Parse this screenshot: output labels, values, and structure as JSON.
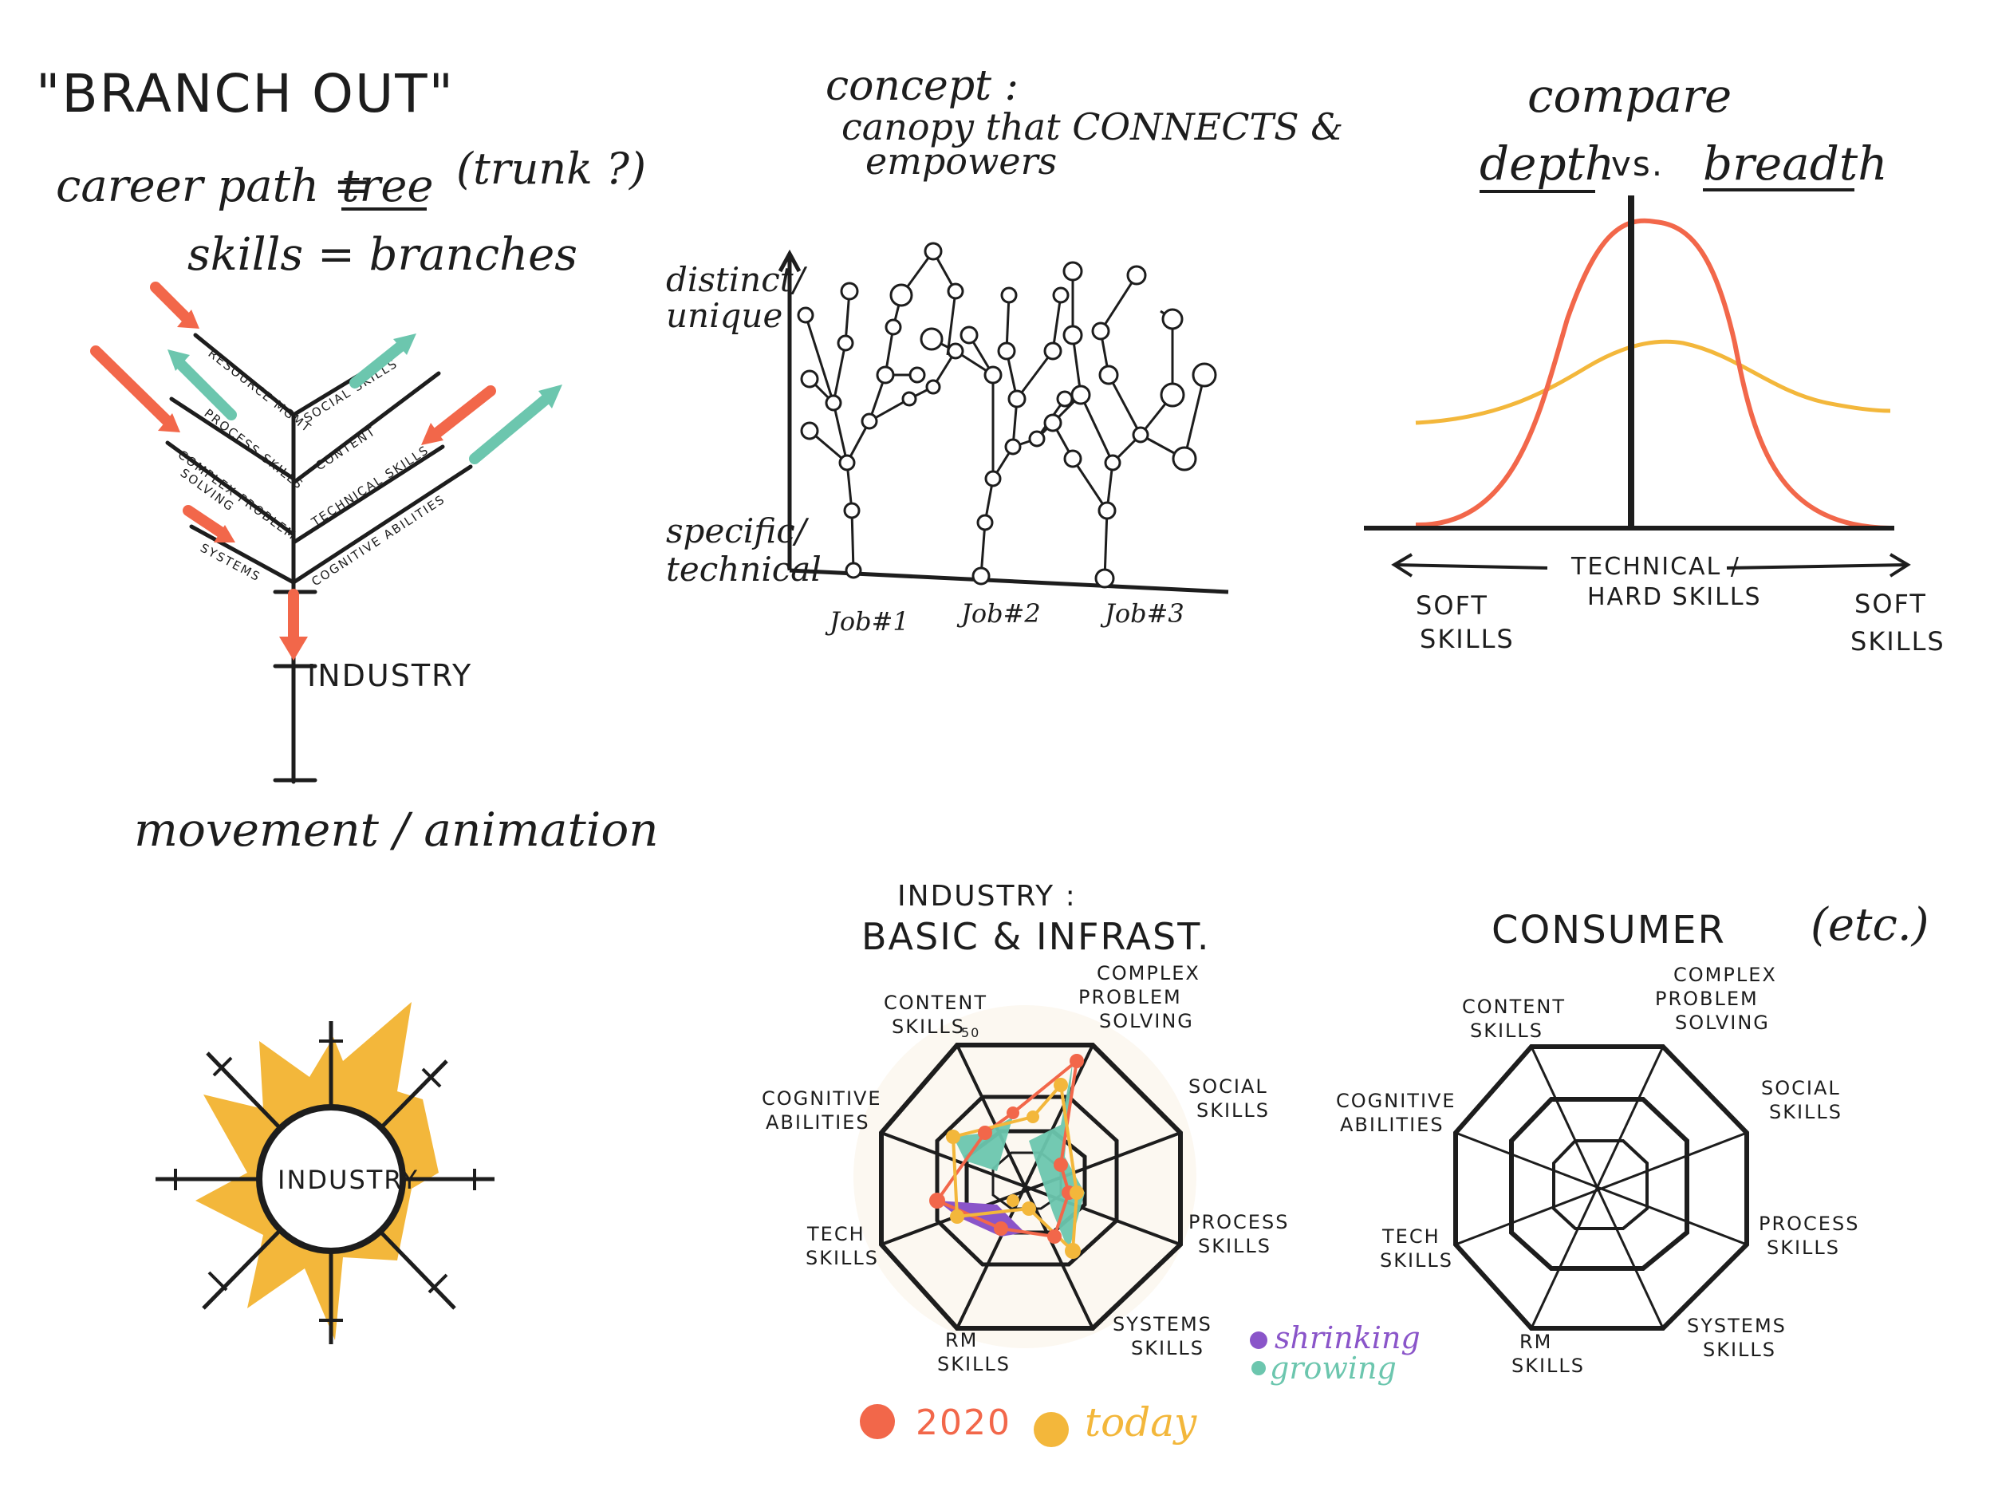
{
  "colors": {
    "ink": "#1d1d1d",
    "orange": "#f2674a",
    "teal": "#6cc6ae",
    "yellow": "#f3b73b",
    "purple": "#8a55c9"
  },
  "tree": {
    "title": "\"BRANCH OUT\"",
    "line1_a": "career path =",
    "line1_tree": "tree",
    "line1_b": "(trunk ?)",
    "line2": "skills = branches",
    "branches": {
      "resource": "RESOURCE MGMT",
      "social": "SOCIAL SKILLS",
      "process": "PROCESS SKILLS",
      "content": "CONTENT",
      "complex": "COMPLEX PROBLEM",
      "solving": "SOLVING",
      "technical": "TECHNICAL SKILLS",
      "systems": "SYSTEMS",
      "cognitive": "COGNITIVE ABILITIES"
    },
    "trunk_label": "INDUSTRY",
    "footer": "movement / animation"
  },
  "concept": {
    "line1": "concept :",
    "line2": "canopy that CONNECTS &",
    "line3": "empowers",
    "y_top": "distinct/",
    "y_top2": "unique",
    "y_bottom": "specific/",
    "y_bottom2": "technical",
    "jobs": [
      "Job#1",
      "Job#2",
      "Job#3"
    ]
  },
  "compare": {
    "title": "compare",
    "depth": "depth",
    "vs": "vs.",
    "breadth": "breadth",
    "center_1": "TECHNICAL /",
    "center_2": "HARD SKILLS",
    "left_1": "SOFT",
    "left_2": "SKILLS",
    "right_1": "SOFT",
    "right_2": "SKILLS"
  },
  "sun": {
    "label": "INDUSTRY"
  },
  "radar_industry": {
    "title_1": "INDUSTRY :",
    "title_2": "BASIC & INFRAST.",
    "scale_label": "50"
  },
  "radar_consumer": {
    "title": "CONSUMER",
    "etc": "(etc.)"
  },
  "radar_axes": {
    "content": [
      "CONTENT",
      "SKILLS"
    ],
    "complex": [
      "COMPLEX",
      "PROBLEM",
      "SOLVING"
    ],
    "social": [
      "SOCIAL",
      "SKILLS"
    ],
    "process": [
      "PROCESS",
      "SKILLS"
    ],
    "systems": [
      "SYSTEMS",
      "SKILLS"
    ],
    "rm": [
      "RM",
      "SKILLS"
    ],
    "tech": [
      "TECH",
      "SKILLS"
    ],
    "cognitive": [
      "COGNITIVE",
      "ABILITIES"
    ]
  },
  "legend": {
    "shrinking": "shrinking",
    "growing": "growing",
    "y2020": "2020",
    "today": "today"
  }
}
